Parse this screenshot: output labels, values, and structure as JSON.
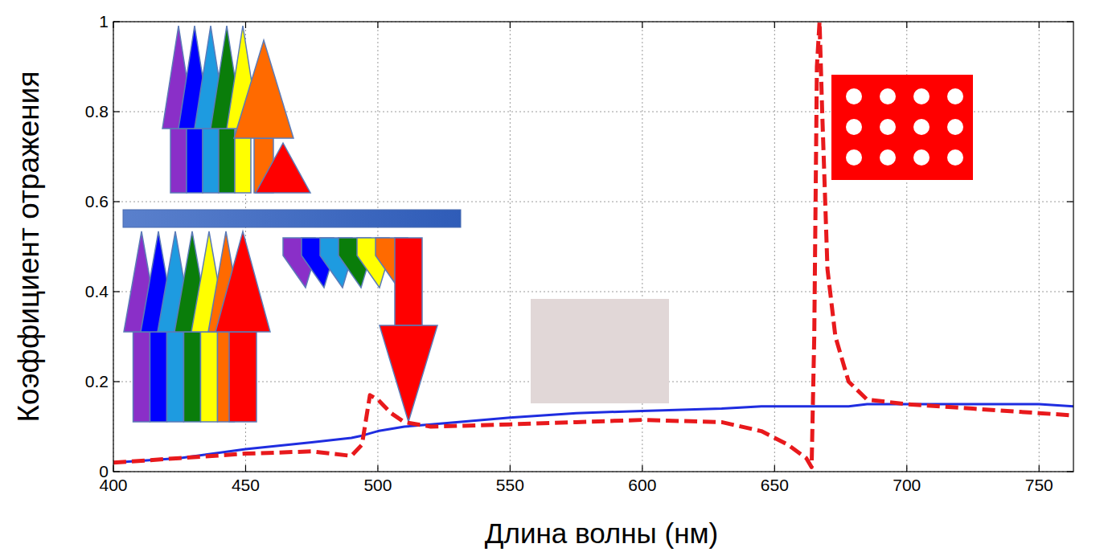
{
  "chart_data": {
    "type": "line",
    "x_label": "Длина волны (нм)",
    "y_label": "Коэффициент отражения",
    "x": [
      400,
      425,
      450,
      475,
      490,
      494,
      497,
      500,
      505,
      510,
      520,
      550,
      575,
      600,
      630,
      645,
      655,
      662,
      664,
      665,
      666,
      667,
      668,
      670,
      673,
      678,
      685,
      700,
      725,
      750,
      763
    ],
    "series": [
      {
        "color": "#1f2de0",
        "line_style": "solid",
        "values": [
          0.02,
          0.03,
          0.05,
          0.065,
          0.075,
          0.08,
          0.085,
          0.09,
          0.095,
          0.1,
          0.105,
          0.12,
          0.13,
          0.135,
          0.14,
          0.145,
          0.145,
          0.145,
          0.145,
          0.145,
          0.145,
          0.145,
          0.145,
          0.145,
          0.145,
          0.145,
          0.15,
          0.15,
          0.15,
          0.15,
          0.145
        ]
      },
      {
        "color": "#e8191c",
        "line_style": "dashed",
        "values": [
          0.02,
          0.03,
          0.04,
          0.045,
          0.035,
          0.06,
          0.17,
          0.16,
          0.13,
          0.11,
          0.1,
          0.105,
          0.11,
          0.115,
          0.11,
          0.09,
          0.06,
          0.03,
          0.01,
          0.3,
          0.9,
          1.0,
          0.8,
          0.45,
          0.3,
          0.2,
          0.16,
          0.15,
          0.14,
          0.13,
          0.125
        ]
      }
    ],
    "xlim": [
      400,
      763
    ],
    "ylim": [
      0,
      1
    ],
    "xticks": [
      400,
      450,
      500,
      550,
      600,
      650,
      700,
      750
    ],
    "yticks": [
      0,
      0.2,
      0.4,
      0.6,
      0.8,
      1
    ],
    "grid": true
  }
}
